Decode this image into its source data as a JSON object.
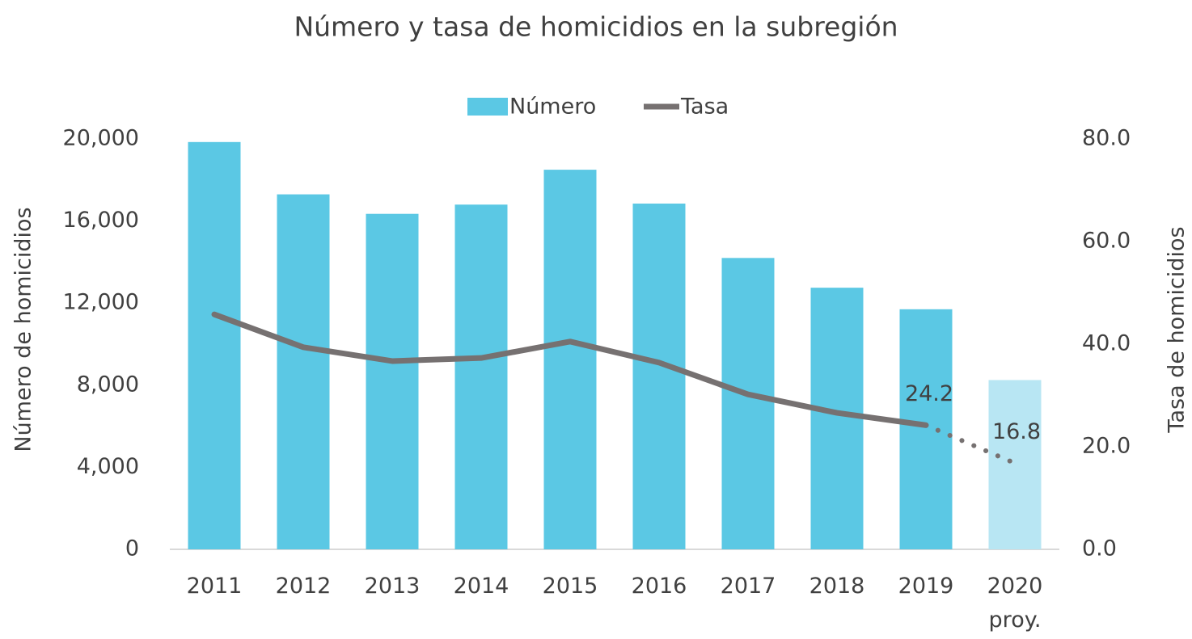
{
  "chart_data": {
    "type": "bar_line",
    "title": "Número y tasa de homicidios en la subregión",
    "y_label": "Número de homicidios",
    "y2_label": "Tasa de homicidios",
    "categories": [
      "2011",
      "2012",
      "2013",
      "2014",
      "2015",
      "2016",
      "2017",
      "2018",
      "2019",
      "2020 proy."
    ],
    "series": [
      {
        "name": "Número",
        "type": "bar",
        "color": "#5bc8e4",
        "projection_color": "#b8e6f3",
        "values": [
          19850,
          17300,
          16350,
          16800,
          18500,
          16850,
          14200,
          12750,
          11700,
          8250
        ]
      },
      {
        "name": "Tasa",
        "type": "line",
        "axis": "y2",
        "color": "#767171",
        "line_style_projection": "dotted",
        "values": [
          45.8,
          39.4,
          36.7,
          37.3,
          40.5,
          36.4,
          30.2,
          26.6,
          24.2,
          16.8
        ],
        "value_labels": [
          null,
          null,
          null,
          null,
          null,
          null,
          null,
          null,
          "24.2",
          "16.8"
        ]
      }
    ],
    "projected_index": 9,
    "ylim": [
      0,
      20000
    ],
    "yticks": [
      0,
      {
        "value": 4000,
        "label": "4,000"
      },
      {
        "value": 8000,
        "label": "8,000"
      },
      {
        "value": 12000,
        "label": "12,000"
      },
      {
        "value": 16000,
        "label": "16,000"
      },
      {
        "value": 20000,
        "label": "20,000"
      }
    ],
    "y2lim": [
      0,
      80
    ],
    "y2ticks": [
      {
        "value": 0,
        "label": "0.0"
      },
      {
        "value": 20,
        "label": "20.0"
      },
      {
        "value": 40,
        "label": "40.0"
      },
      {
        "value": 60,
        "label": "60.0"
      },
      {
        "value": 80,
        "label": "80.0"
      }
    ],
    "legend": "top"
  }
}
